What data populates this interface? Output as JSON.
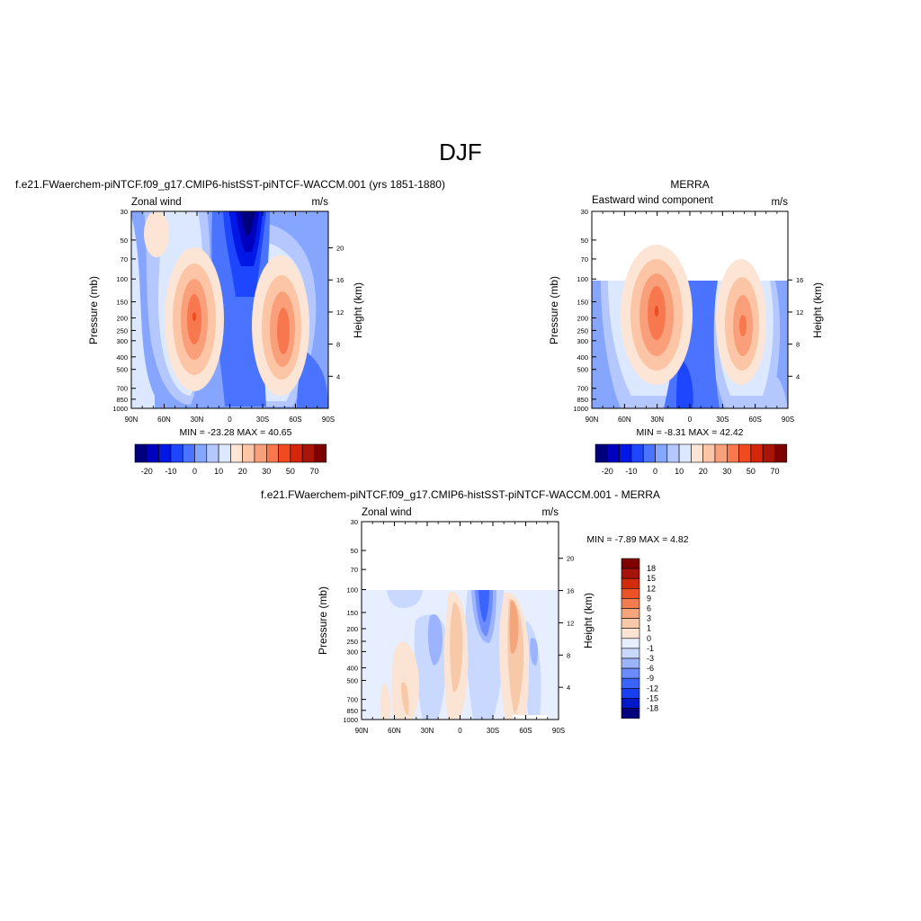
{
  "page_title": "DJF",
  "colors": {
    "model": [
      "#00007f",
      "#0000bf",
      "#0018e6",
      "#1e46ff",
      "#4a73ff",
      "#86a5ff",
      "#b4c8ff",
      "#dce8ff",
      "#fde5d6",
      "#fcc5a6",
      "#f9a07b",
      "#f7784e",
      "#f04a1e",
      "#d5260a",
      "#a81405",
      "#7f0000"
    ],
    "diff": [
      "#00007f",
      "#0018c8",
      "#1840f0",
      "#3a63ff",
      "#6a8cff",
      "#9cb4ff",
      "#c8d8ff",
      "#e6eeff",
      "#fbe4d4",
      "#f8c9a8",
      "#f5a57c",
      "#f37c50",
      "#ea5228",
      "#d02c0c",
      "#a6130a",
      "#7f0000"
    ]
  },
  "panels": {
    "model": {
      "title": "f.e21.FWaerchem-piNTCF.f09_g17.CMIP6-histSST-piNTCF-WACCM.001 (yrs 1851-1880)",
      "left_label": "Zonal wind",
      "units": "m/s",
      "ylabel": "Pressure (mb)",
      "ylabel_right": "Height (km)",
      "min_max": "MIN = -23.28  MAX =  40.65"
    },
    "obs": {
      "title": "MERRA",
      "left_label": "Eastward wind component",
      "units": "m/s",
      "ylabel": "Pressure (mb)",
      "ylabel_right": "Height (km)",
      "min_max": "MIN =  -8.31  MAX =  42.42"
    },
    "diff": {
      "title": "f.e21.FWaerchem-piNTCF.f09_g17.CMIP6-histSST-piNTCF-WACCM.001 - MERRA",
      "left_label": "Zonal wind",
      "units": "m/s",
      "ylabel": "Pressure (mb)",
      "ylabel_right": "Height (km)",
      "min_max": "MIN =  -7.89  MAX =   4.82"
    }
  },
  "chart_data": [
    {
      "type": "heatmap",
      "name": "model",
      "title": "f.e21.FWaerchem-piNTCF.f09_g17.CMIP6-histSST-piNTCF-WACCM.001 (yrs 1851-1880)",
      "xlabel": "",
      "ylabel": "Pressure (mb)",
      "ylabel_right": "Height (km)",
      "x_ticks": [
        "90N",
        "60N",
        "30N",
        "0",
        "30S",
        "60S",
        "90S"
      ],
      "y_ticks": [
        "30",
        "50",
        "70",
        "100",
        "150",
        "200",
        "250",
        "300",
        "400",
        "500",
        "700",
        "850",
        "1000"
      ],
      "y_right_ticks": [
        "20",
        "16",
        "12",
        "8",
        "4"
      ],
      "ylim_mb": [
        1000,
        30
      ],
      "colorbar_labels": [
        "-20",
        "-10",
        "0",
        "10",
        "20",
        "30",
        "50",
        "70"
      ],
      "min": -23.28,
      "max": 40.65
    },
    {
      "type": "heatmap",
      "name": "obs",
      "title": "MERRA",
      "xlabel": "",
      "ylabel": "Pressure (mb)",
      "ylabel_right": "Height (km)",
      "x_ticks": [
        "90N",
        "60N",
        "30N",
        "0",
        "30S",
        "60S",
        "90S"
      ],
      "y_ticks": [
        "30",
        "50",
        "70",
        "100",
        "150",
        "200",
        "250",
        "300",
        "400",
        "500",
        "700",
        "850",
        "1000"
      ],
      "y_right_ticks": [
        "16",
        "12",
        "8",
        "4"
      ],
      "ylim_mb": [
        1000,
        30
      ],
      "data_top_mb": 100,
      "colorbar_labels": [
        "-20",
        "-10",
        "0",
        "10",
        "20",
        "30",
        "50",
        "70"
      ],
      "min": -8.31,
      "max": 42.42
    },
    {
      "type": "heatmap",
      "name": "diff",
      "title": "f.e21.FWaerchem-piNTCF.f09_g17.CMIP6-histSST-piNTCF-WACCM.001 - MERRA",
      "xlabel": "",
      "ylabel": "Pressure (mb)",
      "ylabel_right": "Height (km)",
      "x_ticks": [
        "90N",
        "60N",
        "30N",
        "0",
        "30S",
        "60S",
        "90S"
      ],
      "y_ticks": [
        "30",
        "50",
        "70",
        "100",
        "150",
        "200",
        "250",
        "300",
        "400",
        "500",
        "700",
        "850",
        "1000"
      ],
      "y_right_ticks": [
        "20",
        "16",
        "12",
        "8",
        "4"
      ],
      "ylim_mb": [
        1000,
        30
      ],
      "data_top_mb": 100,
      "colorbar_labels": [
        "18",
        "15",
        "12",
        "9",
        "6",
        "3",
        "1",
        "0",
        "-1",
        "-3",
        "-6",
        "-9",
        "-12",
        "-15",
        "-18"
      ],
      "min": -7.89,
      "max": 4.82
    }
  ]
}
